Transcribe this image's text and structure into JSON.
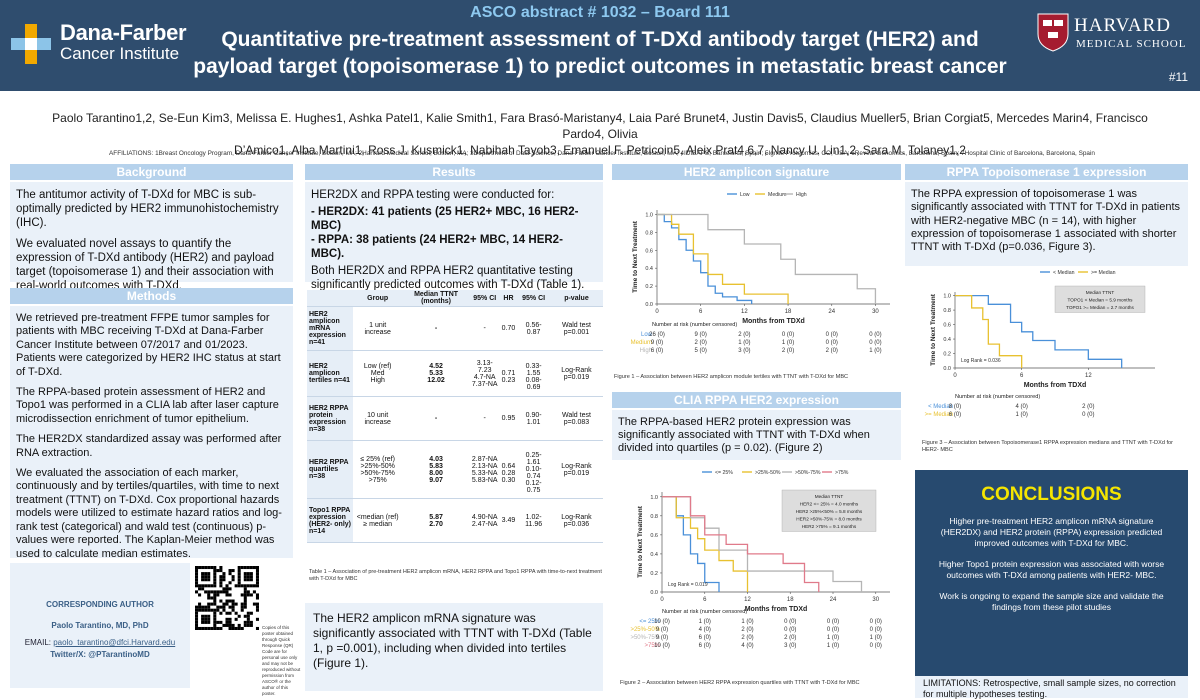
{
  "header": {
    "abstract_no": "ASCO abstract # 1032 – Board 111",
    "title_line1": "Quantitative pre-treatment assessment of T-DXd antibody target (HER2) and",
    "title_line2": "payload target (topoisomerase 1) to predict outcomes in metastatic breast cancer",
    "institution_name": "Dana-Farber",
    "institution_sub": "Cancer Institute",
    "harvard_name": "HARVARD",
    "harvard_sub": "MEDICAL SCHOOL",
    "poster_no": "#11"
  },
  "authors": {
    "line1": "Paolo Tarantino1,2, Se-Eun Kim3, Melissa E. Hughes1, Ashka Patel1, Kalie Smith1, Fara Brasó-Maristany4, Laia Paré Brunet4, Justin Davis5, Claudius Mueller5, Brian Corgiat5, Mercedes Marin4, Francisco Pardo4, Olivia",
    "line2": "D’Amico1, Alba Martini1, Ross J. Kusmick1, Nabihah Tayob3, Emanuel F. Petricoin5, Aleix Prat4,6,7, Nancy U. Lin1,2, Sara M. Tolaney1,2"
  },
  "affiliations": "AFFILIATIONS: 1Breast Oncology Program, Dana-Farber Cancer Institute, Boston, MA; 2Harvard Medical School, Boston, MA; 3Department of Data Science, Dana-Farber Cancer Institute, Boston, MA; 4IDIBAPS, Barcelona, Spain; 5Ignite Proteomics, CO, USA; 6Reveal Genomics, Barcelona, Spain; 7Hospital Clinic of Barcelona, Barcelona, Spain",
  "background": {
    "heading": "Background",
    "p1": "The antitumor activity of T-DXd for MBC is sub-optimally predicted by HER2 immunohistochemistry (IHC).",
    "p2": "We evaluated novel assays to quantify the expression of T-DXd antibody (HER2) and payload target (topoisomerase 1) and their association with real-world outcomes with T-DXd."
  },
  "methods": {
    "heading": "Methods",
    "p1": "We retrieved pre-treatment FFPE tumor samples for patients with MBC receiving T-DXd at Dana-Farber Cancer Institute between 07/2017 and 01/2023. Patients were categorized by HER2 IHC status at start of T-DXd.",
    "p2": "The RPPA-based protein assessment of HER2 and Topo1 was performed in a CLIA lab after laser capture microdissection enrichment of tumor epithelium.",
    "p3": "The HER2DX standardized assay was performed after RNA extraction.",
    "p4": "We evaluated the association of each marker, continuously and by tertiles/quartiles, with time to next treatment (TTNT) on T-DXd. Cox proportional hazards models were utilized to estimate hazard ratios and log-rank test (categorical) and wald test (continuous) p-values were reported. The Kaplan-Meier method was used to calculate median estimates."
  },
  "corresponding": {
    "title": "CORRESPONDING AUTHOR",
    "name": "Paolo Tarantino, MD, PhD",
    "email_label": "EMAIL:",
    "email": "paolo_tarantino@dfci.Harvard.edu",
    "twitter": "Twitter/X: @PTarantinoMD",
    "qr_note": "Copies of this poster obtained through Quick Response (QR) Code are for personal use only and may not be reproduced without permission from ASCO® or the author of this poster."
  },
  "results": {
    "heading": "Results",
    "intro": "HER2DX and RPPA testing were conducted for:",
    "her2dx": "- HER2DX: 41 patients (25 HER2+ MBC, 16 HER2- MBC)",
    "rppa": "- RPPA: 38 patients (24 HER2+ MBC, 14 HER2- MBC).",
    "summary": "Both HER2DX and RPPA HER2 quantitative testing significantly predicted outcomes with T-DXd (Table 1).",
    "table_headers": [
      "",
      "Group",
      "Median TTNT (months)",
      "95% CI",
      "HR",
      "95% CI",
      "p-value"
    ],
    "table_rows": [
      {
        "name": "HER2 amplicon mRNA expression n=41",
        "group": "1 unit increase",
        "median": "-",
        "ci": "-",
        "hr": "0.70",
        "hrci": "0.56-0.87",
        "p": "Wald test p=0.001"
      },
      {
        "name": "HER2 amplicon tertiles n=41",
        "group": "Low (ref)\nMed\nHigh",
        "median": "4.52\n5.33\n12.02",
        "ci": "3.13-7.23\n4.7-NA\n7.37-NA",
        "hr": "\n0.71\n0.23",
        "hrci": "\n0.33-1.55\n0.08-0.69",
        "p": "Log-Rank p=0.019"
      },
      {
        "name": "HER2 RPPA protein expression n=38",
        "group": "10 unit increase",
        "median": "-",
        "ci": "-",
        "hr": "0.95",
        "hrci": "0.90-1.01",
        "p": "Wald test p=0.083"
      },
      {
        "name": "HER2 RPPA quartiles n=38",
        "group": "≤ 25% (ref)\n>25%-50%\n>50%-75%\n>75%",
        "median": "4.03\n5.83\n8.00\n9.07",
        "ci": "2.87-NA\n2.13-NA\n5.33-NA\n5.83-NA",
        "hr": "\n0.64\n0.28\n0.30",
        "hrci": "\n0.25-1.61\n0.10-0.74\n0.12-0.75",
        "p": "Log-Rank p=0.019"
      },
      {
        "name": "Topo1 RPPA expression (HER2- only) n=14",
        "group": "<median (ref)\n≥ median",
        "median": "5.87\n2.70",
        "ci": "4.90-NA\n2.47-NA",
        "hr": "3.49",
        "hrci": "1.02-11.96",
        "p": "Log-Rank p=0.036"
      }
    ],
    "table_caption": "Table 1 – Association of pre-treatment HER2 amplicon mRNA, HER2 RPPA and Topo1 RPPA with time-to-next treatment with T-DXd for MBC",
    "amplicon_text": "The HER2 amplicon mRNA signature was significantly associated with TTNT with T-DXd (Table 1, p =0.001), including when divided into tertiles (Figure 1)."
  },
  "her2_amplicon": {
    "heading": "HER2 amplicon signature",
    "figure_caption": "Figure 1 – Association between HER2 amplicon module tertiles with TTNT with T-DXd for MBC",
    "risk_title": "Number at risk (number censored)",
    "risk_rows": [
      {
        "label": "Low",
        "values": [
          "26 (0)",
          "9 (0)",
          "2 (0)",
          "0 (0)",
          "0 (0)",
          "0 (0)"
        ]
      },
      {
        "label": "Medium",
        "values": [
          "9 (0)",
          "2 (0)",
          "1 (0)",
          "1 (0)",
          "0 (0)",
          "0 (0)"
        ]
      },
      {
        "label": "High",
        "values": [
          "6 (0)",
          "5 (0)",
          "3 (0)",
          "2 (0)",
          "2 (0)",
          "1 (0)"
        ]
      }
    ]
  },
  "clia": {
    "heading": "CLIA RPPA HER2 expression",
    "text": "The RPPA-based HER2 protein expression was significantly associated with TTNT with T-DXd when divided into quartiles (p = 0.02). (Figure 2)",
    "figure_caption": "Figure 2 – Association between HER2 RPPA expression quartiles with TTNT with T-DXd for MBC",
    "risk_title": "Number at risk (number censored)",
    "risk_rows": [
      {
        "label": "<= 25%",
        "values": [
          "10 (0)",
          "1 (0)",
          "1 (0)",
          "0 (0)",
          "0 (0)",
          "0 (0)"
        ]
      },
      {
        "label": ">25%-50%",
        "values": [
          "9 (0)",
          "4 (0)",
          "2 (0)",
          "0 (0)",
          "0 (0)",
          "0 (0)"
        ]
      },
      {
        "label": ">50%-75%",
        "values": [
          "9 (0)",
          "6 (0)",
          "2 (0)",
          "2 (0)",
          "1 (0)",
          "1 (0)"
        ]
      },
      {
        "label": ">75%",
        "values": [
          "10 (0)",
          "6 (0)",
          "4 (0)",
          "3 (0)",
          "1 (0)",
          "0 (0)"
        ]
      }
    ]
  },
  "topo": {
    "heading": "RPPA Topoisomerase 1 expression",
    "text": "The RPPA expression of topoisomerase 1 was significantly associated with TTNT for T-DXd in patients with HER2-negative MBC (n = 14), with higher expression of topoisomerase 1 associated with shorter TTNT with T-DXd (p=0.036, Figure 3).",
    "figure_caption": "Figure 3 – Association between Topoisomerase1 RPPA expression medians and TTNT with T-DXd for HER2- MBC",
    "risk_title": "Number at risk (number censored)",
    "risk_rows": [
      {
        "label": "< Median",
        "values": [
          "8 (0)",
          "4 (0)",
          "2 (0)"
        ]
      },
      {
        "label": ">= Median",
        "values": [
          "6 (0)",
          "1 (0)",
          "0 (0)"
        ]
      }
    ]
  },
  "conclusions": {
    "heading": "CONCLUSIONS",
    "p1": "Higher pre-treatment HER2 amplicon mRNA signature (HER2DX) and HER2 protein (RPPA) expression predicted improved outcomes with T-DXd for MBC.",
    "p2": "Higher Topo1 protein expression was associated with worse outcomes with T-DXd among patients with HER2- MBC.",
    "p3": "Work is ongoing to expand the sample size and validate the findings from these pilot studies",
    "limitations": "LIMITATIONS: Retrospective, small sample sizes, no correction for multiple hypotheses testing."
  },
  "chart_data": [
    {
      "type": "line",
      "title": "Figure 1 – HER2 amplicon tertiles",
      "xlabel": "Months from TDXd",
      "ylabel": "Time to Next Treatment",
      "xlim": [
        0,
        32
      ],
      "ylim": [
        0,
        1.05
      ],
      "xticks": [
        0,
        6,
        12,
        18,
        24,
        30
      ],
      "yticks": [
        0.0,
        0.2,
        0.4,
        0.6,
        0.8,
        1.0
      ],
      "series": [
        {
          "name": "Low",
          "color": "#4a90d9",
          "steps": [
            [
              0,
              1.0
            ],
            [
              1,
              0.92
            ],
            [
              2,
              0.85
            ],
            [
              3,
              0.72
            ],
            [
              4,
              0.6
            ],
            [
              5,
              0.48
            ],
            [
              6,
              0.35
            ],
            [
              7,
              0.2
            ],
            [
              8,
              0.12
            ],
            [
              9,
              0.08
            ],
            [
              11,
              0.04
            ],
            [
              13,
              0.0
            ]
          ]
        },
        {
          "name": "Medium",
          "color": "#e8c130",
          "steps": [
            [
              0,
              1.0
            ],
            [
              2,
              0.89
            ],
            [
              3,
              0.78
            ],
            [
              5,
              0.56
            ],
            [
              7,
              0.33
            ],
            [
              9,
              0.22
            ],
            [
              12,
              0.11
            ],
            [
              16,
              0.11
            ],
            [
              18,
              0.0
            ]
          ]
        },
        {
          "name": "High",
          "color": "#b5b5b5",
          "steps": [
            [
              0,
              1.0
            ],
            [
              7,
              0.83
            ],
            [
              12,
              0.67
            ],
            [
              17,
              0.5
            ],
            [
              19,
              0.33
            ],
            [
              27,
              0.33
            ],
            [
              27.5,
              0.17
            ],
            [
              30,
              0.0
            ]
          ]
        }
      ]
    },
    {
      "type": "line",
      "title": "Figure 2 – HER2 RPPA quartiles",
      "xlabel": "Months from TDXd",
      "ylabel": "Time to Next Treatment",
      "xlim": [
        0,
        32
      ],
      "ylim": [
        0,
        1.05
      ],
      "xticks": [
        0,
        6,
        12,
        18,
        24,
        30
      ],
      "yticks": [
        0.0,
        0.2,
        0.4,
        0.6,
        0.8,
        1.0
      ],
      "annotation": "Log Rank = 0.019",
      "legend_box": [
        "Median TTNT",
        "HER2 <= 25% = 4.0 months",
        "HER2 >25%<50% = 5.8 months",
        "HER2 >50%-75% = 8.0 months",
        "HER2 >75% = 9.1 months"
      ],
      "series": [
        {
          "name": "<= 25%",
          "color": "#4a90d9",
          "steps": [
            [
              0,
              1.0
            ],
            [
              2,
              0.8
            ],
            [
              3,
              0.6
            ],
            [
              4,
              0.4
            ],
            [
              5,
              0.3
            ],
            [
              6,
              0.1
            ],
            [
              8,
              0.0
            ]
          ]
        },
        {
          "name": ">25%-50%",
          "color": "#e8c130",
          "steps": [
            [
              0,
              1.0
            ],
            [
              2,
              0.78
            ],
            [
              4,
              0.67
            ],
            [
              5,
              0.56
            ],
            [
              6,
              0.44
            ],
            [
              8,
              0.33
            ],
            [
              10,
              0.22
            ],
            [
              12,
              0.0
            ]
          ]
        },
        {
          "name": ">50%-75%",
          "color": "#b5b5b5",
          "steps": [
            [
              0,
              1.0
            ],
            [
              4,
              0.78
            ],
            [
              6,
              0.67
            ],
            [
              8,
              0.44
            ],
            [
              12,
              0.22
            ],
            [
              18,
              0.22
            ],
            [
              24,
              0.11
            ],
            [
              28,
              0.0
            ]
          ]
        },
        {
          "name": ">75%",
          "color": "#e07a8a",
          "steps": [
            [
              0,
              1.0
            ],
            [
              4,
              0.8
            ],
            [
              6,
              0.6
            ],
            [
              9,
              0.5
            ],
            [
              12,
              0.4
            ],
            [
              17,
              0.3
            ],
            [
              20,
              0.1
            ],
            [
              22,
              0.0
            ]
          ]
        }
      ]
    },
    {
      "type": "line",
      "title": "Figure 3 – Topo1 RPPA median",
      "xlabel": "Months from TDXd",
      "ylabel": "Time to Next Treatment",
      "xlim": [
        0,
        18
      ],
      "ylim": [
        0,
        1.05
      ],
      "xticks": [
        0,
        6,
        12
      ],
      "yticks": [
        0.0,
        0.2,
        0.4,
        0.6,
        0.8,
        1.0
      ],
      "annotation": "Log Rank = 0.036",
      "legend_box": [
        "Median TTNT",
        "TOPO1 < Median = 5.9 months",
        "TOPO1 >= Median = 2.7 months"
      ],
      "series": [
        {
          "name": "< Median",
          "color": "#4a90d9",
          "steps": [
            [
              0,
              1.0
            ],
            [
              3,
              0.88
            ],
            [
              5,
              0.63
            ],
            [
              6,
              0.5
            ],
            [
              7,
              0.38
            ],
            [
              9,
              0.25
            ],
            [
              12,
              0.12
            ],
            [
              15,
              0.0
            ]
          ]
        },
        {
          "name": ">= Median",
          "color": "#e8c130",
          "steps": [
            [
              0,
              1.0
            ],
            [
              1.5,
              0.83
            ],
            [
              2.5,
              0.67
            ],
            [
              3,
              0.33
            ],
            [
              4,
              0.17
            ],
            [
              6,
              0.0
            ]
          ]
        }
      ]
    }
  ]
}
